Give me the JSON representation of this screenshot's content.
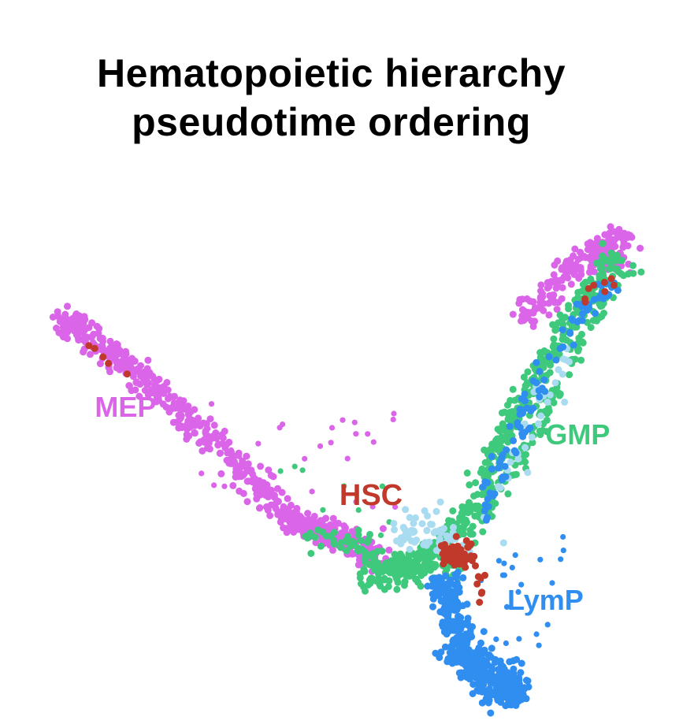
{
  "title_lines": [
    "Hematopoietic hierarchy",
    "pseudotime ordering"
  ],
  "colors": {
    "MEP": "#db65e8",
    "GMP": "#3ec97c",
    "HSC": "#c0392b",
    "LymP": "#2f8ef0",
    "light": "#a9dcf1"
  },
  "chart_data": {
    "type": "scatter",
    "title": "Hematopoietic hierarchy pseudotime ordering",
    "xlabel": "",
    "ylabel": "",
    "grid": false,
    "legend": "none",
    "xlim": [
      0,
      100
    ],
    "ylim": [
      0,
      100
    ],
    "series": [
      {
        "name": "MEP",
        "label_pos": [
          17,
          53
        ],
        "branch": [
          [
            8,
            70
          ],
          [
            20,
            60
          ],
          [
            30,
            49
          ],
          [
            42,
            35
          ],
          [
            50,
            31
          ],
          [
            57,
            27
          ]
        ],
        "tip": [
          [
            82,
            82
          ],
          [
            92,
            77
          ]
        ]
      },
      {
        "name": "GMP",
        "label_pos": [
          87,
          48
        ],
        "branch": [
          [
            53,
            23
          ],
          [
            62,
            25
          ],
          [
            70,
            35
          ],
          [
            78,
            55
          ],
          [
            86,
            71
          ],
          [
            93,
            83
          ]
        ]
      },
      {
        "name": "HSC",
        "label_pos": [
          55,
          37
        ],
        "core": [
          [
            64,
            27
          ],
          [
            68,
            31
          ],
          [
            70,
            25
          ]
        ]
      },
      {
        "name": "LymP",
        "label_pos": [
          82,
          18
        ],
        "branch": [
          [
            66,
            24
          ],
          [
            68,
            15
          ],
          [
            70,
            8
          ],
          [
            76,
            3
          ],
          [
            79,
            2
          ]
        ]
      }
    ]
  }
}
